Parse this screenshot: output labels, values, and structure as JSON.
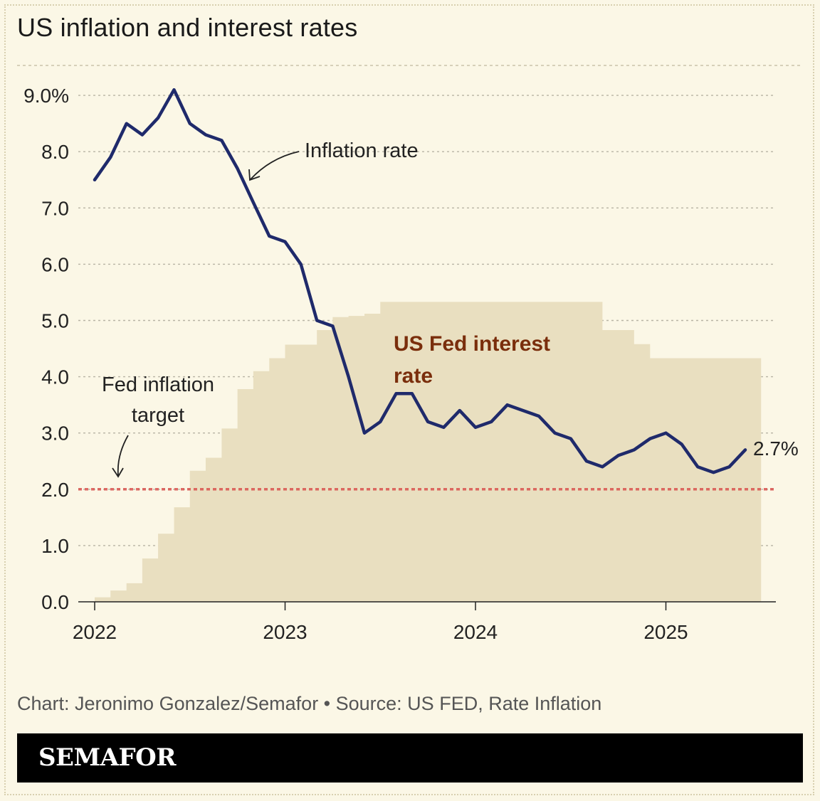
{
  "title": "US inflation and interest rates",
  "footer": {
    "source": "Chart: Jeronimo Gonzalez/Semafor • Source: US FED, Rate Inflation",
    "brand": "SEMAFOR"
  },
  "colors": {
    "background": "#fbf7e6",
    "inflation_line": "#1f2a6b",
    "fed_rate_fill": "#e9dfc0",
    "fed_rate_label": "#7a2e0c",
    "target_line": "#d9534f",
    "grid": "#b8b4a4"
  },
  "chart_data": {
    "type": "line",
    "x_unit": "year",
    "xlim": [
      2022,
      2025.65
    ],
    "ylim": [
      0,
      9.5
    ],
    "x_ticks": [
      {
        "value": 2022,
        "label": "2022"
      },
      {
        "value": 2023,
        "label": "2023"
      },
      {
        "value": 2024,
        "label": "2024"
      },
      {
        "value": 2025,
        "label": "2025"
      }
    ],
    "y_ticks": [
      {
        "value": 0,
        "label": "0.0"
      },
      {
        "value": 1,
        "label": "1.0"
      },
      {
        "value": 2,
        "label": "2.0"
      },
      {
        "value": 3,
        "label": "3.0"
      },
      {
        "value": 4,
        "label": "4.0"
      },
      {
        "value": 5,
        "label": "5.0"
      },
      {
        "value": 6,
        "label": "6.0"
      },
      {
        "value": 7,
        "label": "7.0"
      },
      {
        "value": 8,
        "label": "8.0"
      },
      {
        "value": 9,
        "label": "9.0%"
      }
    ],
    "grid": true,
    "series": [
      {
        "name": "Inflation rate",
        "kind": "line",
        "x": [
          2022.0,
          2022.083,
          2022.167,
          2022.25,
          2022.333,
          2022.417,
          2022.5,
          2022.583,
          2022.667,
          2022.75,
          2022.833,
          2022.917,
          2023.0,
          2023.083,
          2023.167,
          2023.25,
          2023.333,
          2023.417,
          2023.5,
          2023.583,
          2023.667,
          2023.75,
          2023.833,
          2023.917,
          2024.0,
          2024.083,
          2024.167,
          2024.25,
          2024.333,
          2024.417,
          2024.5,
          2024.583,
          2024.667,
          2024.75,
          2024.833,
          2024.917,
          2025.0,
          2025.083,
          2025.167,
          2025.25,
          2025.333,
          2025.417
        ],
        "values": [
          7.5,
          7.9,
          8.5,
          8.3,
          8.6,
          9.1,
          8.5,
          8.3,
          8.2,
          7.7,
          7.1,
          6.5,
          6.4,
          6.0,
          5.0,
          4.9,
          4.0,
          3.0,
          3.2,
          3.7,
          3.7,
          3.2,
          3.1,
          3.4,
          3.1,
          3.2,
          3.5,
          3.4,
          3.3,
          3.0,
          2.9,
          2.5,
          2.4,
          2.6,
          2.7,
          2.9,
          3.0,
          2.8,
          2.4,
          2.3,
          2.4,
          2.7
        ]
      },
      {
        "name": "US Fed interest rate",
        "kind": "step-area",
        "x": [
          2022.0,
          2022.083,
          2022.167,
          2022.25,
          2022.333,
          2022.417,
          2022.5,
          2022.583,
          2022.667,
          2022.75,
          2022.833,
          2022.917,
          2023.0,
          2023.083,
          2023.167,
          2023.25,
          2023.333,
          2023.417,
          2023.5,
          2023.583,
          2023.667,
          2023.75,
          2023.833,
          2023.917,
          2024.0,
          2024.083,
          2024.167,
          2024.25,
          2024.333,
          2024.417,
          2024.5,
          2024.583,
          2024.667,
          2024.75,
          2024.833,
          2024.917,
          2025.0,
          2025.083,
          2025.167,
          2025.25,
          2025.333,
          2025.417
        ],
        "x_end": 2025.5,
        "values": [
          0.08,
          0.2,
          0.33,
          0.77,
          1.21,
          1.68,
          2.33,
          2.56,
          3.08,
          3.78,
          4.1,
          4.33,
          4.57,
          4.57,
          4.83,
          5.06,
          5.08,
          5.12,
          5.33,
          5.33,
          5.33,
          5.33,
          5.33,
          5.33,
          5.33,
          5.33,
          5.33,
          5.33,
          5.33,
          5.33,
          5.33,
          5.33,
          4.83,
          4.83,
          4.58,
          4.33,
          4.33,
          4.33,
          4.33,
          4.33,
          4.33,
          4.33
        ]
      }
    ],
    "reference_lines": [
      {
        "name": "Fed inflation target",
        "value": 2.0
      }
    ],
    "annotations": {
      "inflation_label": "Inflation rate",
      "fed_rate_label_line1": "US Fed interest",
      "fed_rate_label_line2": "rate",
      "target_label_line1": "Fed inflation",
      "target_label_line2": "target",
      "end_value_label": "2.7%"
    }
  }
}
